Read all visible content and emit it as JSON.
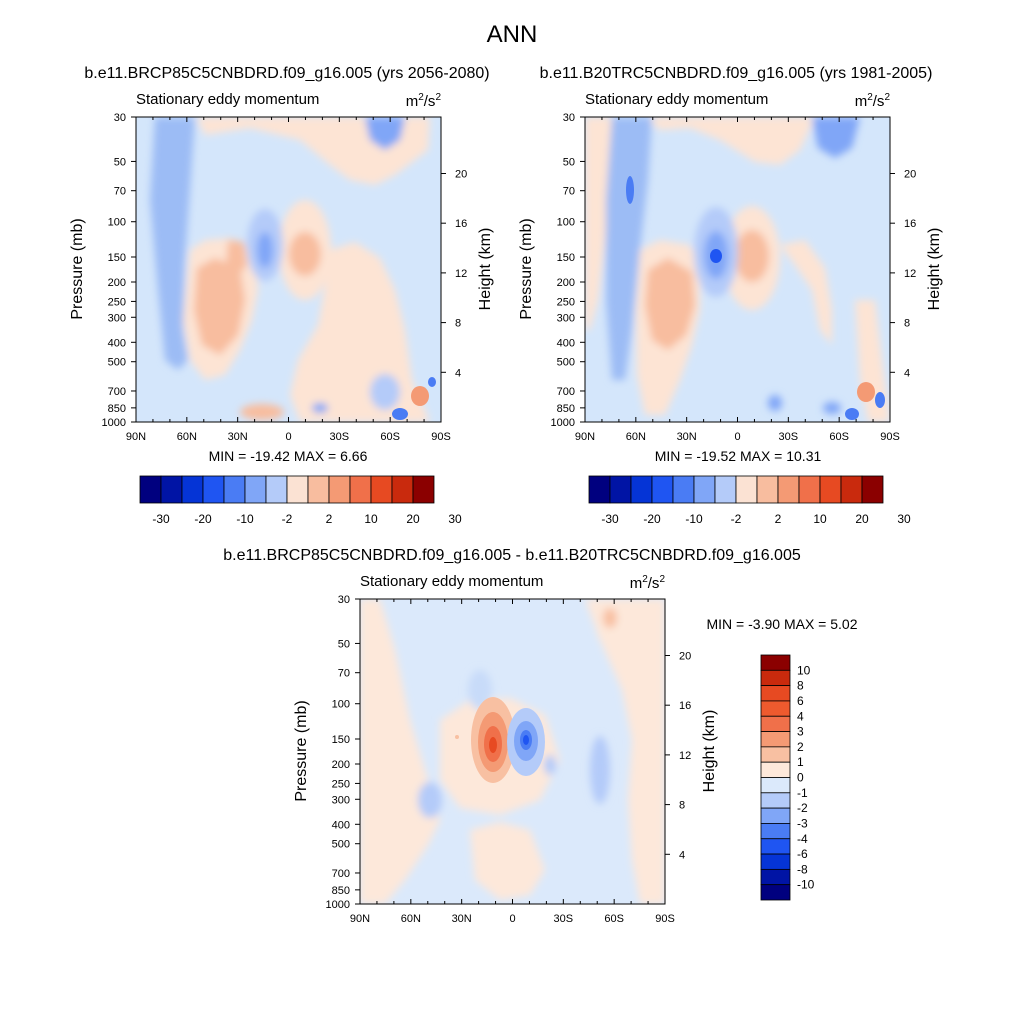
{
  "figure": {
    "title": "ANN"
  },
  "chart_data": [
    {
      "type": "heatmap",
      "title": "b.e11.BRCP85C5CNBDRD.f09_g16.005 (yrs 2056-2080)",
      "subtitle_left": "Stationary eddy momentum",
      "units_base": "m",
      "units_exp1": "2",
      "units_mid": "/s",
      "units_exp2": "2",
      "ylabel": "Pressure (mb)",
      "ylabel_right": "Height (km)",
      "x_ticks": [
        "90N",
        "60N",
        "30N",
        "0",
        "30S",
        "60S",
        "90S"
      ],
      "y_ticks": [
        "30",
        "50",
        "70",
        "100",
        "150",
        "200",
        "250",
        "300",
        "400",
        "500",
        "700",
        "850",
        "1000"
      ],
      "y_ticks_right": [
        "20",
        "16",
        "12",
        "8",
        "4"
      ],
      "min_label": "MIN =",
      "min": "-19.42",
      "max_label": "MAX =",
      "max": "6.66",
      "colorbar_ticks": [
        "-30",
        "-20",
        "-10",
        "-2",
        "2",
        "10",
        "20",
        "30"
      ]
    },
    {
      "type": "heatmap",
      "title": "b.e11.B20TRC5CNBDRD.f09_g16.005 (yrs 1981-2005)",
      "subtitle_left": "Stationary eddy momentum",
      "units_base": "m",
      "units_exp1": "2",
      "units_mid": "/s",
      "units_exp2": "2",
      "ylabel": "Pressure (mb)",
      "ylabel_right": "Height (km)",
      "x_ticks": [
        "90N",
        "60N",
        "30N",
        "0",
        "30S",
        "60S",
        "90S"
      ],
      "y_ticks": [
        "30",
        "50",
        "70",
        "100",
        "150",
        "200",
        "250",
        "300",
        "400",
        "500",
        "700",
        "850",
        "1000"
      ],
      "y_ticks_right": [
        "20",
        "16",
        "12",
        "8",
        "4"
      ],
      "min_label": "MIN =",
      "min": "-19.52",
      "max_label": "MAX =",
      "max": "10.31",
      "colorbar_ticks": [
        "-30",
        "-20",
        "-10",
        "-2",
        "2",
        "10",
        "20",
        "30"
      ]
    },
    {
      "type": "heatmap",
      "title": "b.e11.BRCP85C5CNBDRD.f09_g16.005 - b.e11.B20TRC5CNBDRD.f09_g16.005",
      "subtitle_left": "Stationary eddy momentum",
      "units_base": "m",
      "units_exp1": "2",
      "units_mid": "/s",
      "units_exp2": "2",
      "ylabel": "Pressure (mb)",
      "ylabel_right": "Height (km)",
      "x_ticks": [
        "90N",
        "60N",
        "30N",
        "0",
        "30S",
        "60S",
        "90S"
      ],
      "y_ticks": [
        "30",
        "50",
        "70",
        "100",
        "150",
        "200",
        "250",
        "300",
        "400",
        "500",
        "700",
        "850",
        "1000"
      ],
      "y_ticks_right": [
        "20",
        "16",
        "12",
        "8",
        "4"
      ],
      "min_label": "MIN =",
      "min": "-3.90",
      "max_label": "MAX =",
      "max": "5.02",
      "colorbar_ticks": [
        "10",
        "8",
        "6",
        "4",
        "3",
        "2",
        "1",
        "0",
        "-1",
        "-2",
        "-3",
        "-4",
        "-6",
        "-8",
        "-10"
      ]
    }
  ],
  "colors": {
    "background_low": "#d4e6fb",
    "background_high": "#fde4d4",
    "scale_14": [
      "#00007f",
      "#0014a5",
      "#0534d6",
      "#1f55f2",
      "#4a7cf4",
      "#80a6f7",
      "#b4cbf9",
      "#fbe2d3",
      "#f8bd9f",
      "#f49a74",
      "#f0704a",
      "#e74a22",
      "#c92a0d",
      "#8b0000"
    ],
    "scale_16": [
      "#00007f",
      "#0014a5",
      "#0534d6",
      "#1f55f2",
      "#4a7cf4",
      "#80a6f7",
      "#b4cbf9",
      "#dbe9fb",
      "#fde8da",
      "#f8c0a2",
      "#f49a74",
      "#f0704a",
      "#ee5a2e",
      "#e74a22",
      "#c92a0d",
      "#8b0000"
    ]
  }
}
